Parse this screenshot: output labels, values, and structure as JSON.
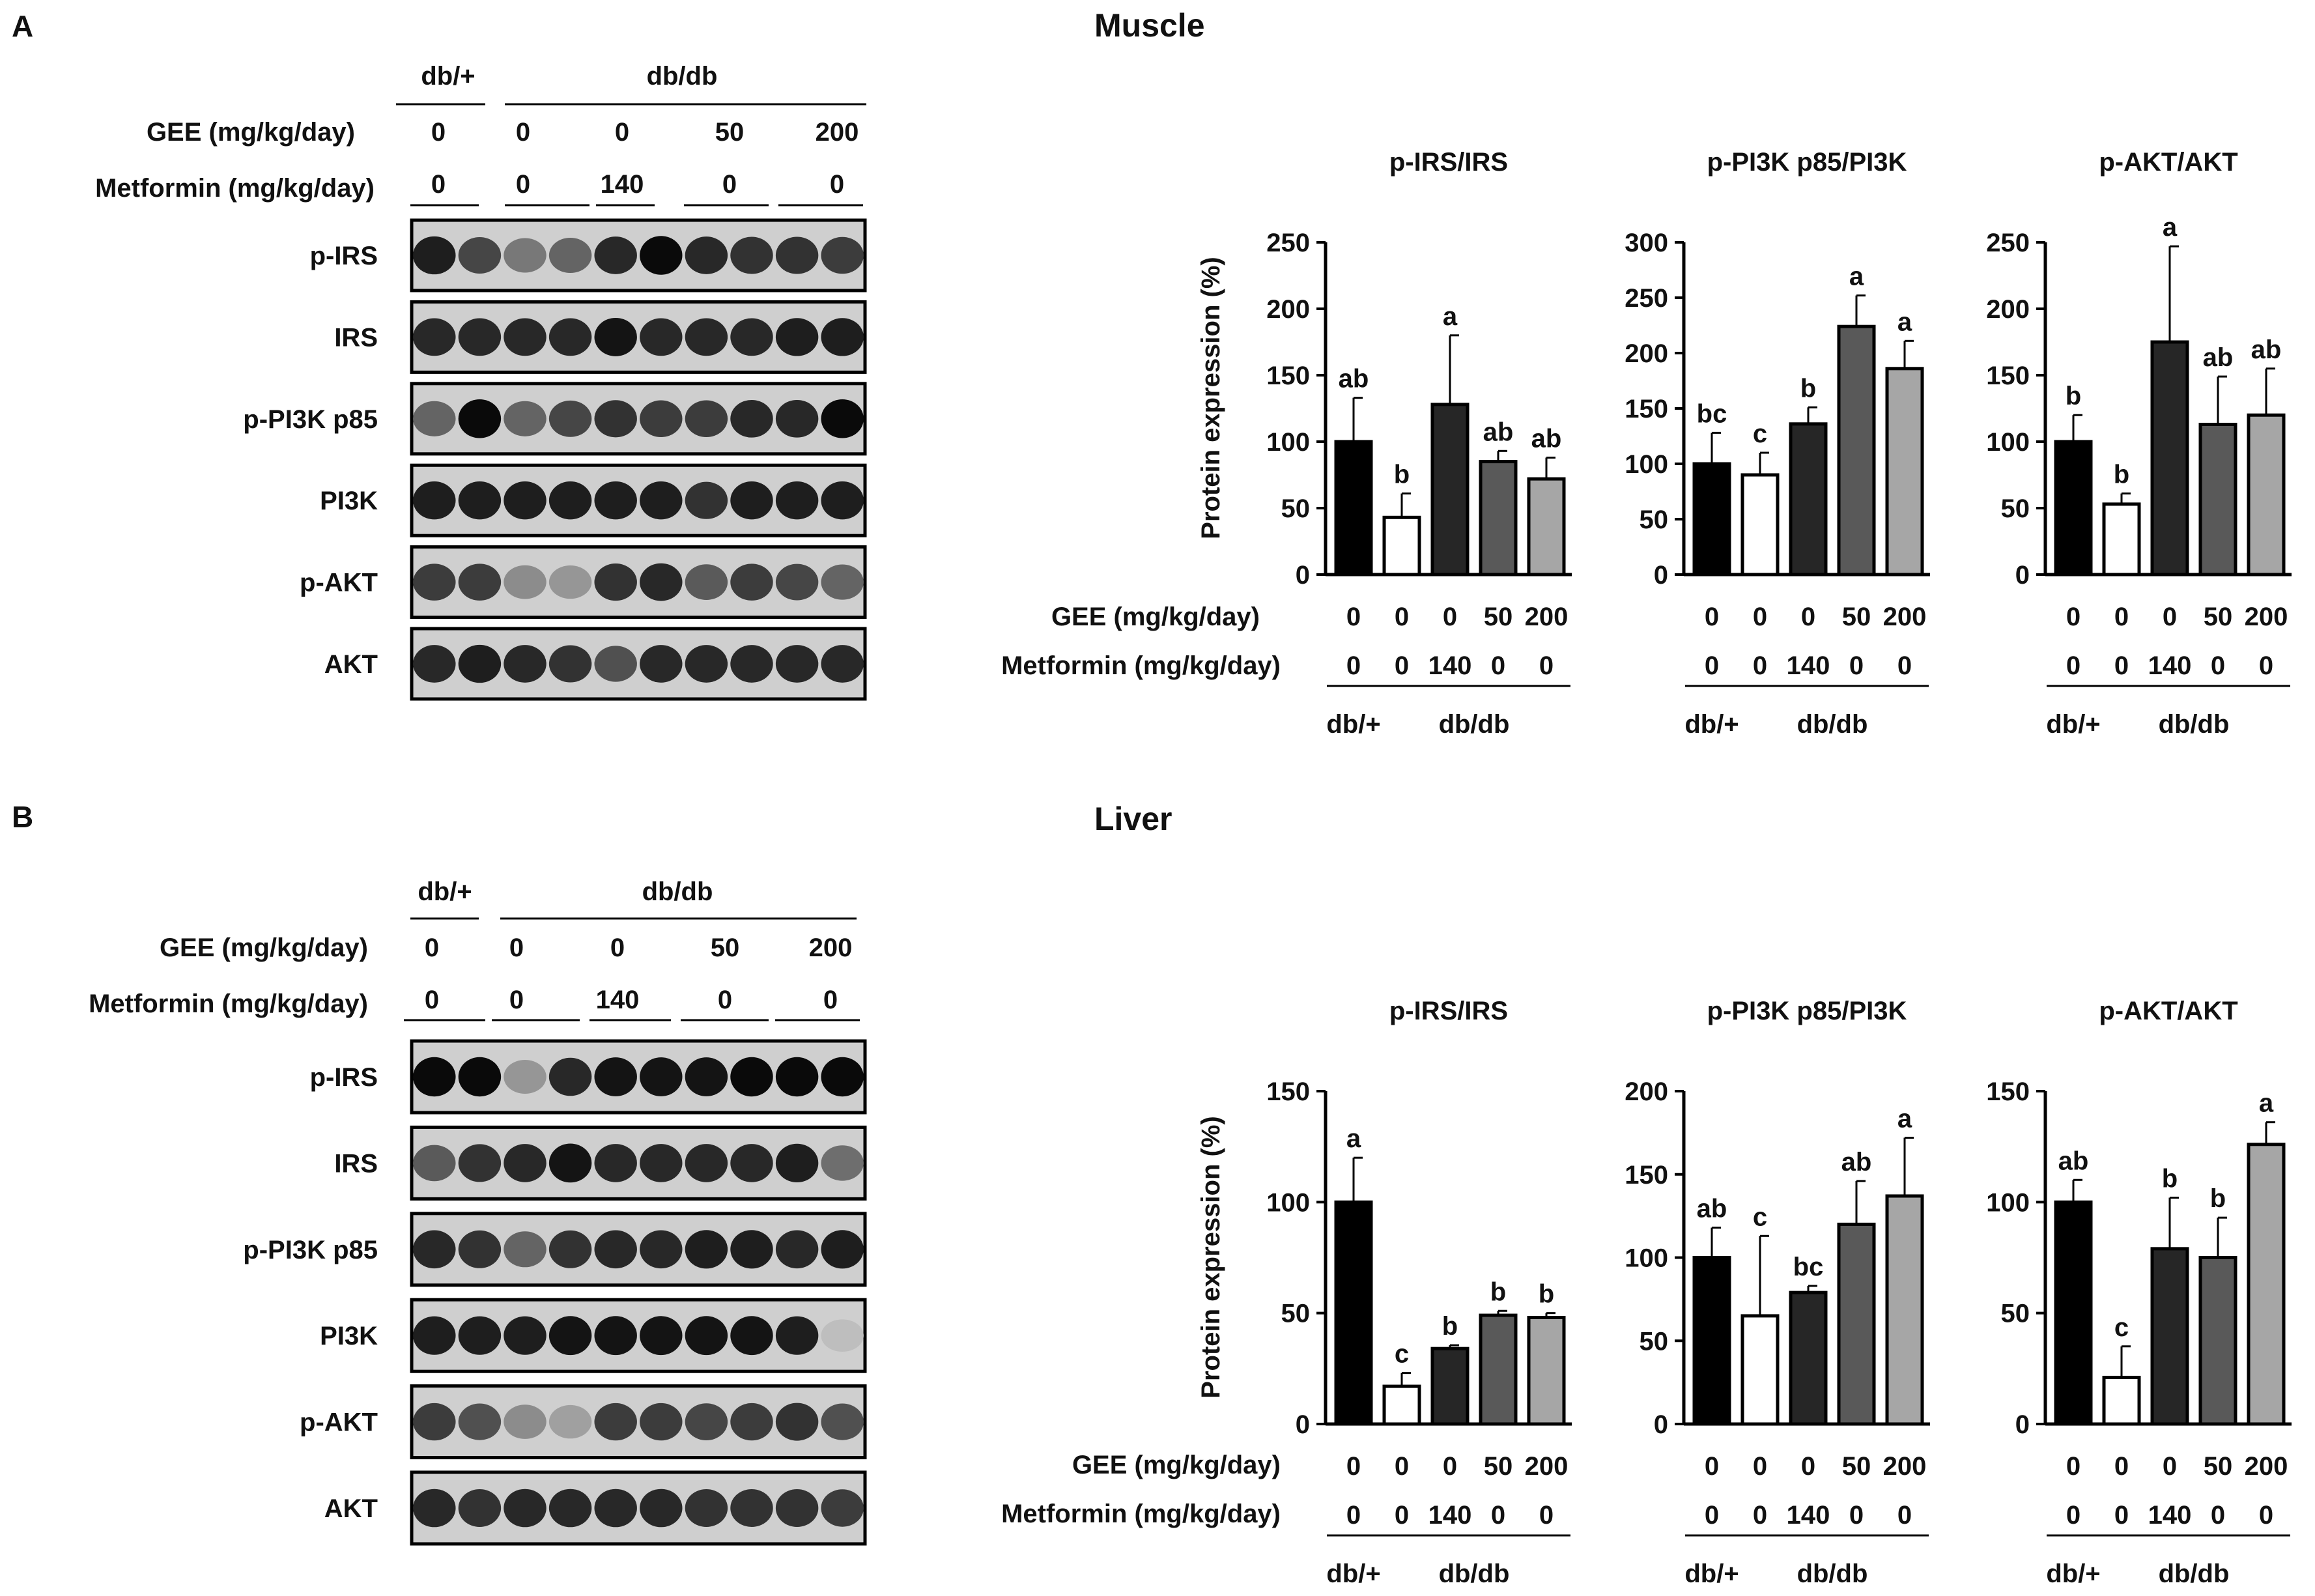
{
  "panel_a": {
    "letter": "A",
    "title": "Muscle",
    "blot": {
      "groups": [
        "db/+",
        "db/db"
      ],
      "gee_label": "GEE (mg/kg/day)",
      "gee_values": [
        "0",
        "0",
        "0",
        "50",
        "200"
      ],
      "metformin_label": "Metformin (mg/kg/day)",
      "metformin_values": [
        "0",
        "0",
        "140",
        "0",
        "0"
      ],
      "proteins": [
        "p-IRS",
        "IRS",
        "p-PI3K p85",
        "PI3K",
        "p-AKT",
        "AKT"
      ],
      "intensity": [
        [
          0.9,
          0.7,
          0.45,
          0.55,
          0.85,
          1.0,
          0.85,
          0.8,
          0.8,
          0.75
        ],
        [
          0.85,
          0.85,
          0.85,
          0.85,
          0.95,
          0.85,
          0.85,
          0.85,
          0.9,
          0.9
        ],
        [
          0.55,
          1.0,
          0.55,
          0.7,
          0.8,
          0.75,
          0.75,
          0.85,
          0.85,
          1.0
        ],
        [
          0.9,
          0.9,
          0.9,
          0.9,
          0.9,
          0.9,
          0.8,
          0.9,
          0.9,
          0.9
        ],
        [
          0.75,
          0.75,
          0.35,
          0.3,
          0.8,
          0.85,
          0.6,
          0.75,
          0.7,
          0.55
        ],
        [
          0.85,
          0.9,
          0.85,
          0.8,
          0.65,
          0.85,
          0.85,
          0.85,
          0.85,
          0.85
        ]
      ]
    },
    "axis_title": "Protein expression (%)",
    "x_rows": {
      "gee_label": "GEE (mg/kg/day)",
      "gee_values": [
        "0",
        "0",
        "0",
        "50",
        "200"
      ],
      "metformin_label": "Metformin (mg/kg/day)",
      "metformin_values": [
        "0",
        "0",
        "140",
        "0",
        "0"
      ],
      "groups": [
        "db/+",
        "db/db"
      ]
    }
  },
  "panel_b": {
    "letter": "B",
    "title": "Liver",
    "blot": {
      "groups": [
        "db/+",
        "db/db"
      ],
      "gee_label": "GEE (mg/kg/day)",
      "gee_values": [
        "0",
        "0",
        "0",
        "50",
        "200"
      ],
      "metformin_label": "Metformin (mg/kg/day)",
      "metformin_values": [
        "0",
        "0",
        "140",
        "0",
        "0"
      ],
      "proteins": [
        "p-IRS",
        "IRS",
        "p-PI3K p85",
        "PI3K",
        "p-AKT",
        "AKT"
      ],
      "intensity": [
        [
          1.0,
          1.0,
          0.3,
          0.85,
          0.95,
          0.95,
          0.95,
          1.0,
          1.0,
          1.0
        ],
        [
          0.6,
          0.8,
          0.85,
          0.95,
          0.85,
          0.85,
          0.85,
          0.85,
          0.9,
          0.5
        ],
        [
          0.85,
          0.8,
          0.55,
          0.8,
          0.85,
          0.85,
          0.9,
          0.9,
          0.85,
          0.9
        ],
        [
          0.9,
          0.9,
          0.9,
          0.95,
          0.95,
          0.95,
          0.95,
          0.95,
          0.9,
          0.1
        ],
        [
          0.75,
          0.65,
          0.35,
          0.25,
          0.75,
          0.75,
          0.7,
          0.75,
          0.8,
          0.65
        ],
        [
          0.85,
          0.8,
          0.85,
          0.85,
          0.85,
          0.85,
          0.8,
          0.8,
          0.8,
          0.75
        ]
      ]
    },
    "axis_title": "Protein expression (%)",
    "x_rows": {
      "gee_label": "GEE (mg/kg/day)",
      "gee_values": [
        "0",
        "0",
        "0",
        "50",
        "200"
      ],
      "metformin_label": "Metformin (mg/kg/day)",
      "metformin_values": [
        "0",
        "0",
        "140",
        "0",
        "0"
      ],
      "groups": [
        "db/+",
        "db/db"
      ]
    }
  },
  "colors": {
    "bar_fills": [
      "#000000",
      "#ffffff",
      "#262626",
      "#595959",
      "#a6a6a6"
    ],
    "stroke": "#000000",
    "text": "#111111"
  },
  "chart_data": [
    {
      "type": "bar",
      "panel": "A",
      "title": "p-IRS/IRS",
      "ylabel": "Protein expression (%)",
      "ylim": [
        0,
        250
      ],
      "yticks": [
        0,
        50,
        100,
        150,
        200,
        250
      ],
      "values": [
        100,
        43,
        128,
        85,
        72
      ],
      "errors": [
        33,
        18,
        52,
        8,
        16
      ],
      "letters": [
        "ab",
        "b",
        "a",
        "ab",
        "ab"
      ]
    },
    {
      "type": "bar",
      "panel": "A",
      "title": "p-PI3K p85/PI3K",
      "ylim": [
        0,
        300
      ],
      "yticks": [
        0,
        50,
        100,
        150,
        200,
        250,
        300
      ],
      "values": [
        100,
        90,
        136,
        224,
        186
      ],
      "errors": [
        28,
        20,
        15,
        28,
        25
      ],
      "letters": [
        "bc",
        "c",
        "b",
        "a",
        "a"
      ]
    },
    {
      "type": "bar",
      "panel": "A",
      "title": "p-AKT/AKT",
      "ylim": [
        0,
        250
      ],
      "yticks": [
        0,
        50,
        100,
        150,
        200,
        250
      ],
      "values": [
        100,
        53,
        175,
        113,
        120
      ],
      "errors": [
        20,
        8,
        72,
        36,
        35
      ],
      "letters": [
        "b",
        "b",
        "a",
        "ab",
        "ab"
      ]
    },
    {
      "type": "bar",
      "panel": "B",
      "title": "p-IRS/IRS",
      "ylabel": "Protein expression (%)",
      "ylim": [
        0,
        150
      ],
      "yticks": [
        0,
        50,
        100,
        150
      ],
      "values": [
        100,
        17,
        34,
        49,
        48
      ],
      "errors": [
        20,
        6,
        1.5,
        2,
        2
      ],
      "letters": [
        "a",
        "c",
        "b",
        "b",
        "b"
      ]
    },
    {
      "type": "bar",
      "panel": "B",
      "title": "p-PI3K p85/PI3K",
      "ylim": [
        0,
        200
      ],
      "yticks": [
        0,
        50,
        100,
        150,
        200
      ],
      "values": [
        100,
        65,
        79,
        120,
        137
      ],
      "errors": [
        18,
        48,
        4,
        26,
        35
      ],
      "letters": [
        "ab",
        "c",
        "bc",
        "ab",
        "a"
      ]
    },
    {
      "type": "bar",
      "panel": "B",
      "title": "p-AKT/AKT",
      "ylim": [
        0,
        150
      ],
      "yticks": [
        0,
        50,
        100,
        150
      ],
      "values": [
        100,
        21,
        79,
        75,
        126
      ],
      "errors": [
        10,
        14,
        23,
        18,
        10
      ],
      "letters": [
        "ab",
        "c",
        "b",
        "b",
        "a"
      ]
    }
  ]
}
